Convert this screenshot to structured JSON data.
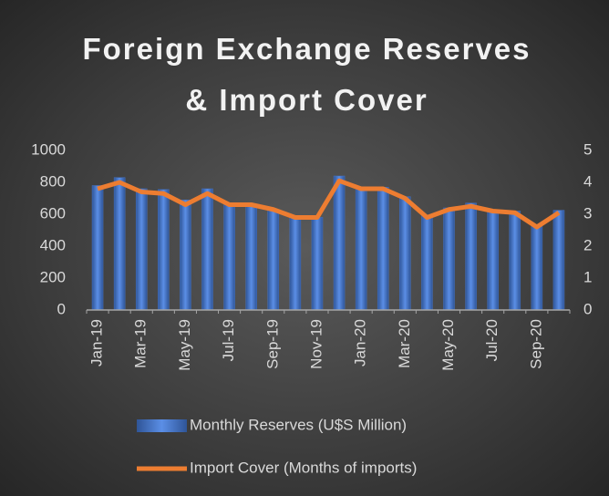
{
  "chart_data": {
    "type": "bar_line",
    "title": "Foreign Exchange Reserves & Import Cover",
    "categories": [
      "Jan-19",
      null,
      "Mar-19",
      null,
      "May-19",
      null,
      "Jul-19",
      null,
      "Sep-19",
      null,
      "Nov-19",
      null,
      "Jan-20",
      null,
      "Mar-20",
      null,
      "May-20",
      null,
      "Jul-20",
      null,
      "Sep-20",
      null
    ],
    "series": [
      {
        "name": "Monthly Reserves (U$S Million)",
        "type": "bar",
        "color": "#4472c4",
        "values": [
          780,
          830,
          760,
          755,
          690,
          760,
          660,
          660,
          630,
          580,
          580,
          840,
          770,
          770,
          710,
          590,
          640,
          670,
          630,
          620,
          530,
          625
        ]
      },
      {
        "name": "Import Cover (Months of imports)",
        "type": "line",
        "axis": "y2",
        "color": "#ed7d31",
        "values": [
          3.8,
          4.0,
          3.7,
          3.65,
          3.3,
          3.65,
          3.3,
          3.3,
          3.15,
          2.9,
          2.9,
          4.05,
          3.8,
          3.8,
          3.5,
          2.9,
          3.15,
          3.25,
          3.1,
          3.05,
          2.6,
          3.05
        ]
      }
    ],
    "ylim": [
      0,
      1000
    ],
    "yticks": [
      0,
      200,
      400,
      600,
      800,
      1000
    ],
    "y2lim": [
      0,
      5
    ],
    "y2ticks": [
      0,
      1,
      2,
      3,
      4,
      5
    ],
    "legend": "bottom"
  }
}
